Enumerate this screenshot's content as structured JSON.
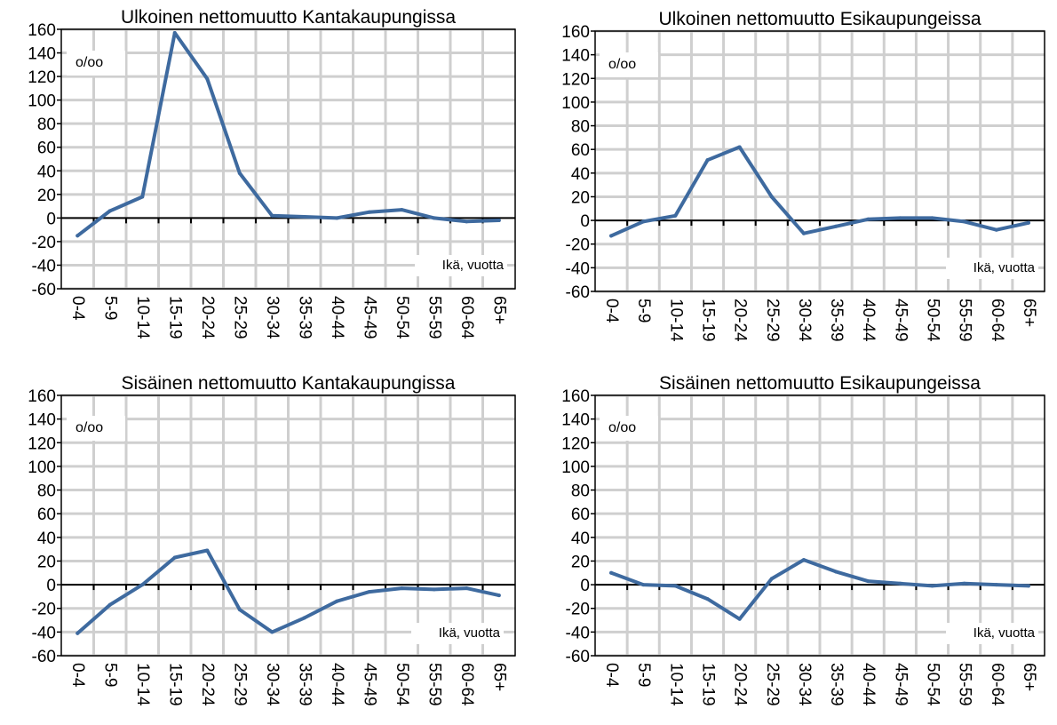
{
  "chart_data": [
    {
      "type": "line",
      "title": "Ulkoinen nettomuutto Kantakaupungissa",
      "unit_label": "o/oo",
      "xlabel": "Ikä, vuotta",
      "ylim": [
        -60,
        160
      ],
      "yticks": [
        -60,
        -40,
        -20,
        0,
        20,
        40,
        60,
        80,
        100,
        120,
        140,
        160
      ],
      "grid": true,
      "color": "#3E6A9F",
      "categories": [
        "0-4",
        "5-9",
        "10-14",
        "15-19",
        "20-24",
        "25-29",
        "30-34",
        "35-39",
        "40-44",
        "45-49",
        "50-54",
        "55-59",
        "60-64",
        "65+"
      ],
      "values": [
        -15,
        6,
        18,
        157,
        118,
        38,
        2,
        1,
        0,
        5,
        7,
        0,
        -3,
        -2
      ]
    },
    {
      "type": "line",
      "title": "Ulkoinen nettomuutto Esikaupungeissa",
      "unit_label": "o/oo",
      "xlabel": "Ikä, vuotta",
      "ylim": [
        -60,
        160
      ],
      "yticks": [
        -60,
        -40,
        -20,
        0,
        20,
        40,
        60,
        80,
        100,
        120,
        140,
        160
      ],
      "grid": true,
      "color": "#3E6A9F",
      "categories": [
        "0-4",
        "5-9",
        "10-14",
        "15-19",
        "20-24",
        "25-29",
        "30-34",
        "35-39",
        "40-44",
        "45-49",
        "50-54",
        "55-59",
        "60-64",
        "65+"
      ],
      "values": [
        -13,
        -1,
        4,
        51,
        62,
        20,
        -11,
        -5,
        1,
        2,
        2,
        -1,
        -8,
        -2
      ]
    },
    {
      "type": "line",
      "title": "Sisäinen nettomuutto Kantakaupungissa",
      "unit_label": "o/oo",
      "xlabel": "Ikä, vuotta",
      "ylim": [
        -60,
        160
      ],
      "yticks": [
        -60,
        -40,
        -20,
        0,
        20,
        40,
        60,
        80,
        100,
        120,
        140,
        160
      ],
      "grid": true,
      "color": "#3E6A9F",
      "categories": [
        "0-4",
        "5-9",
        "10-14",
        "15-19",
        "20-24",
        "25-29",
        "30-34",
        "35-39",
        "40-44",
        "45-49",
        "50-54",
        "55-59",
        "60-64",
        "65+"
      ],
      "values": [
        -41,
        -17,
        0,
        23,
        29,
        -21,
        -40,
        -28,
        -14,
        -6,
        -3,
        -4,
        -3,
        -9
      ]
    },
    {
      "type": "line",
      "title": "Sisäinen nettomuutto Esikaupungeissa",
      "unit_label": "o/oo",
      "xlabel": "Ikä, vuotta",
      "ylim": [
        -60,
        160
      ],
      "yticks": [
        -60,
        -40,
        -20,
        0,
        20,
        40,
        60,
        80,
        100,
        120,
        140,
        160
      ],
      "grid": true,
      "color": "#3E6A9F",
      "categories": [
        "0-4",
        "5-9",
        "10-14",
        "15-19",
        "20-24",
        "25-29",
        "30-34",
        "35-39",
        "40-44",
        "45-49",
        "50-54",
        "55-59",
        "60-64",
        "65+"
      ],
      "values": [
        10,
        0,
        -1,
        -12,
        -29,
        5,
        21,
        11,
        3,
        1,
        -1,
        1,
        0,
        -1
      ]
    }
  ]
}
